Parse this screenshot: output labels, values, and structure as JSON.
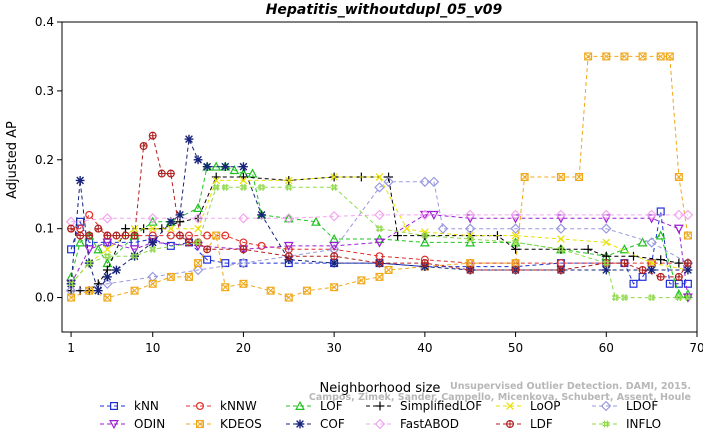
{
  "chart_data": {
    "type": "line",
    "title": "Hepatitis_withoutdupl_05_v09",
    "xlabel": "Neighborhood size",
    "ylabel": "Adjusted AP",
    "xlim": [
      0,
      70
    ],
    "ylim": [
      -0.05,
      0.4
    ],
    "xticks": [
      "1",
      "10",
      "20",
      "30",
      "40",
      "50",
      "60",
      "70"
    ],
    "yticks": [
      "0.0",
      "0.1",
      "0.2",
      "0.3",
      "0.4"
    ],
    "grid": false,
    "legend_position": "bottom",
    "series": [
      {
        "name": "kNN",
        "color": "#1f2fd8",
        "marker": "square",
        "dash": "4,3",
        "x": [
          1,
          2,
          3,
          5,
          8,
          10,
          12,
          14,
          16,
          18,
          20,
          25,
          30,
          35,
          40,
          45,
          50,
          55,
          60,
          62,
          63,
          64,
          65,
          66,
          67,
          68,
          69
        ],
        "y": [
          0.07,
          0.11,
          0.08,
          0.08,
          0.08,
          0.085,
          0.075,
          0.08,
          0.055,
          0.05,
          0.05,
          0.05,
          0.05,
          0.05,
          0.045,
          0.045,
          0.045,
          0.05,
          0.05,
          0.05,
          0.02,
          0.03,
          0.05,
          0.125,
          0.02,
          0.02,
          0.02
        ]
      },
      {
        "name": "kNNW",
        "color": "#e0302a",
        "marker": "circle",
        "dash": "4,3",
        "x": [
          1,
          2,
          3,
          5,
          8,
          10,
          12,
          14,
          16,
          18,
          20,
          22,
          25,
          30,
          35,
          40,
          45,
          50,
          55,
          60,
          65,
          69
        ],
        "y": [
          0.1,
          0.1,
          0.12,
          0.09,
          0.09,
          0.09,
          0.09,
          0.09,
          0.09,
          0.09,
          0.08,
          0.075,
          0.07,
          0.07,
          0.06,
          0.055,
          0.05,
          0.05,
          0.05,
          0.05,
          0.05,
          0.05
        ]
      },
      {
        "name": "LOF",
        "color": "#1fc21f",
        "marker": "triangle",
        "dash": "4,3",
        "x": [
          1,
          2,
          3,
          4,
          5,
          8,
          10,
          12,
          15,
          16,
          17,
          18,
          19,
          20,
          21,
          22,
          25,
          28,
          30,
          35,
          40,
          45,
          50,
          55,
          60,
          62,
          64,
          66,
          68,
          69
        ],
        "y": [
          0.03,
          0.08,
          0.09,
          0.07,
          0.05,
          0.09,
          0.11,
          0.11,
          0.13,
          0.19,
          0.19,
          0.19,
          0.185,
          0.18,
          0.18,
          0.12,
          0.115,
          0.11,
          0.085,
          0.085,
          0.08,
          0.08,
          0.08,
          0.07,
          0.06,
          0.07,
          0.08,
          0.09,
          0.005,
          0.005
        ]
      },
      {
        "name": "SimplifiedLOF",
        "color": "#000000",
        "marker": "plus",
        "dash": "4,3",
        "x": [
          1,
          2,
          3,
          4,
          5,
          7,
          9,
          11,
          13,
          15,
          17,
          20,
          25,
          30,
          33,
          36,
          37,
          40,
          45,
          48,
          50,
          55,
          58,
          60,
          63,
          66,
          68,
          69
        ],
        "y": [
          0.01,
          0.01,
          0.01,
          0.02,
          0.04,
          0.1,
          0.1,
          0.1,
          0.11,
          0.115,
          0.175,
          0.175,
          0.17,
          0.175,
          0.175,
          0.175,
          0.09,
          0.09,
          0.09,
          0.09,
          0.07,
          0.07,
          0.07,
          0.06,
          0.06,
          0.055,
          0.05,
          0.05
        ]
      },
      {
        "name": "LoOP",
        "color": "#e8e000",
        "marker": "cross",
        "dash": "4,3",
        "x": [
          1,
          3,
          5,
          8,
          10,
          12,
          15,
          17,
          20,
          25,
          30,
          35,
          38,
          40,
          45,
          50,
          55,
          60,
          65,
          69
        ],
        "y": [
          0.02,
          0.05,
          0.07,
          0.1,
          0.1,
          0.1,
          0.1,
          0.17,
          0.17,
          0.17,
          0.175,
          0.175,
          0.1,
          0.095,
          0.09,
          0.09,
          0.085,
          0.08,
          0.05,
          0.04
        ]
      },
      {
        "name": "LDOF",
        "color": "#9a9ae0",
        "marker": "diamond",
        "dash": "4,3",
        "x": [
          1,
          5,
          10,
          15,
          20,
          25,
          30,
          35,
          36,
          40,
          41,
          42,
          45,
          50,
          55,
          60,
          65,
          69
        ],
        "y": [
          0.01,
          0.02,
          0.03,
          0.04,
          0.05,
          0.06,
          0.07,
          0.16,
          0.168,
          0.168,
          0.168,
          0.1,
          0.1,
          0.1,
          0.1,
          0.1,
          0.08,
          0.05
        ]
      },
      {
        "name": "ODIN",
        "color": "#9b1fd0",
        "marker": "triangle-down",
        "dash": "4,3",
        "x": [
          1,
          3,
          5,
          8,
          10,
          15,
          20,
          25,
          30,
          35,
          40,
          41,
          45,
          50,
          55,
          60,
          65,
          68,
          69
        ],
        "y": [
          0.02,
          0.07,
          0.08,
          0.07,
          0.08,
          0.075,
          0.07,
          0.075,
          0.075,
          0.08,
          0.12,
          0.12,
          0.115,
          0.115,
          0.115,
          0.115,
          0.115,
          0.1,
          0.0
        ]
      },
      {
        "name": "KDEOS",
        "color": "#f0a81a",
        "marker": "square-x",
        "dash": "4,3",
        "x": [
          1,
          3,
          5,
          8,
          10,
          12,
          14,
          15,
          17,
          18,
          20,
          23,
          25,
          27,
          30,
          33,
          35,
          36,
          40,
          45,
          50,
          51,
          55,
          57,
          58,
          60,
          62,
          64,
          66,
          67,
          68,
          69
        ],
        "y": [
          0.0,
          0.01,
          0.0,
          0.01,
          0.02,
          0.03,
          0.03,
          0.05,
          0.09,
          0.015,
          0.02,
          0.01,
          0.0,
          0.01,
          0.015,
          0.025,
          0.03,
          0.04,
          0.045,
          0.05,
          0.05,
          0.175,
          0.175,
          0.175,
          0.35,
          0.35,
          0.35,
          0.35,
          0.35,
          0.35,
          0.175,
          0.09
        ]
      },
      {
        "name": "COF",
        "color": "#16237a",
        "marker": "asterisk",
        "dash": "4,3",
        "x": [
          1,
          2,
          3,
          4,
          5,
          6,
          8,
          10,
          12,
          13,
          14,
          15,
          16,
          18,
          20,
          22,
          25,
          30,
          35,
          40,
          45,
          50,
          55,
          60,
          65,
          69
        ],
        "y": [
          0.02,
          0.17,
          0.05,
          0.01,
          0.03,
          0.04,
          0.06,
          0.08,
          0.11,
          0.12,
          0.23,
          0.2,
          0.19,
          0.19,
          0.19,
          0.12,
          0.055,
          0.05,
          0.05,
          0.045,
          0.04,
          0.04,
          0.04,
          0.04,
          0.04,
          0.04
        ]
      },
      {
        "name": "FastABOD",
        "color": "#f3a6f0",
        "marker": "diamond",
        "dash": "4,3",
        "x": [
          1,
          5,
          10,
          15,
          20,
          25,
          30,
          35,
          40,
          45,
          50,
          55,
          60,
          65,
          68,
          69
        ],
        "y": [
          0.11,
          0.115,
          0.115,
          0.115,
          0.115,
          0.115,
          0.118,
          0.12,
          0.12,
          0.12,
          0.12,
          0.12,
          0.12,
          0.12,
          0.12,
          0.12
        ]
      },
      {
        "name": "LDF",
        "color": "#b02020",
        "marker": "circle-plus",
        "dash": "4,3",
        "x": [
          1,
          2,
          3,
          4,
          5,
          6,
          7,
          8,
          9,
          10,
          11,
          12,
          13,
          14,
          15,
          16,
          20,
          25,
          30,
          35,
          40,
          45,
          50,
          55,
          60,
          62,
          64,
          66,
          68,
          69
        ],
        "y": [
          0.1,
          0.09,
          0.09,
          0.1,
          0.09,
          0.09,
          0.09,
          0.09,
          0.22,
          0.235,
          0.18,
          0.18,
          0.09,
          0.08,
          0.08,
          0.07,
          0.07,
          0.06,
          0.06,
          0.05,
          0.05,
          0.04,
          0.04,
          0.04,
          0.05,
          0.05,
          0.04,
          0.03,
          0.03,
          0.05
        ]
      },
      {
        "name": "INFLO",
        "color": "#8fd84a",
        "marker": "hash",
        "dash": "4,3",
        "x": [
          1,
          3,
          5,
          8,
          10,
          15,
          17,
          18,
          20,
          22,
          25,
          30,
          35,
          40,
          45,
          50,
          55,
          60,
          61,
          62,
          65,
          68,
          69
        ],
        "y": [
          0.02,
          0.05,
          0.06,
          0.06,
          0.07,
          0.08,
          0.16,
          0.16,
          0.16,
          0.16,
          0.16,
          0.16,
          0.1,
          0.09,
          0.085,
          0.08,
          0.07,
          0.05,
          0.0,
          0.0,
          0.0,
          0.0,
          0.0
        ]
      }
    ]
  },
  "watermark": {
    "line1": "Unsupervised Outlier Detection. DAMI, 2015.",
    "line2": "Campos, Zimek, Sander, Campello, Micenkova, Schubert, Assent, Houle"
  }
}
